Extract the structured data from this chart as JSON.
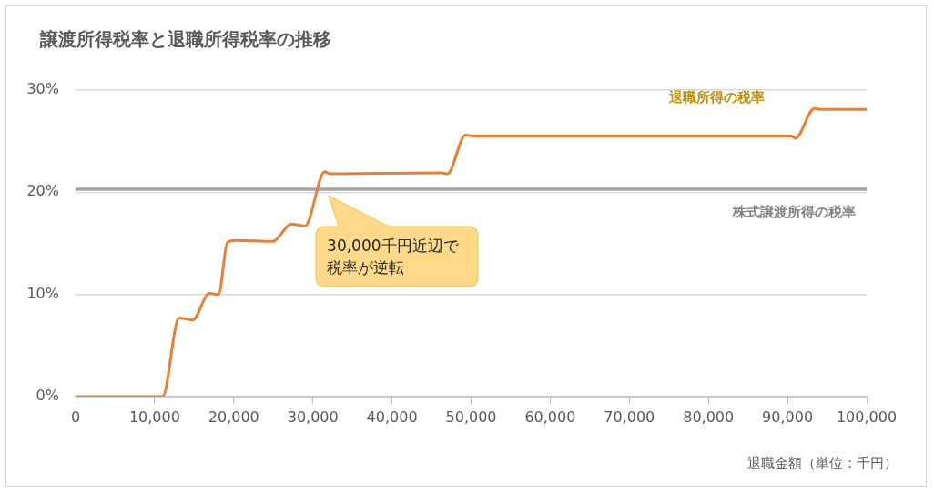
{
  "chart_data": {
    "type": "line",
    "title": "譲渡所得税率と退職所得税率の推移",
    "xlabel": "退職金額（単位：千円）",
    "series": [
      {
        "name": "退職所得の税率",
        "color": "#ed7d31",
        "x": [
          0,
          11000,
          13080,
          14800,
          16900,
          18070,
          19200,
          20370,
          24970,
          27270,
          29000,
          31500,
          32250,
          46300,
          47000,
          49300,
          50370,
          90440,
          91000,
          93400,
          94250,
          100000
        ],
        "values": [
          0,
          0,
          7.7,
          7.5,
          10.1,
          10,
          15.1,
          15.3,
          15.2,
          16.9,
          16.7,
          22,
          21.8,
          21.9,
          21.8,
          25.6,
          25.5,
          25.5,
          25.3,
          28.2,
          28.1,
          28.1
        ]
      },
      {
        "name": "株式譲渡所得の税率",
        "color": "#a5a5a5",
        "x": [
          0,
          100000
        ],
        "values": [
          20.3,
          20.3
        ]
      }
    ],
    "annotations": [
      {
        "text": "30,000千円近辺で税率が逆転",
        "x": 32000,
        "y": 20
      }
    ],
    "xlim": [
      0,
      100000
    ],
    "xticks": [
      {
        "value": 0,
        "label": "0"
      },
      {
        "value": 10000,
        "label": "10,000"
      },
      {
        "value": 20000,
        "label": "20,000"
      },
      {
        "value": 30000,
        "label": "30,000"
      },
      {
        "value": 40000,
        "label": "40,000"
      },
      {
        "value": 50000,
        "label": "50,000"
      },
      {
        "value": 60000,
        "label": "60,000"
      },
      {
        "value": 70000,
        "label": "70,000"
      },
      {
        "value": 80000,
        "label": "80,000"
      },
      {
        "value": 90000,
        "label": "90,000"
      },
      {
        "value": 100000,
        "label": "100,000"
      }
    ],
    "ylim": [
      0,
      30
    ],
    "yticks": [
      {
        "value": 0,
        "label": "0%"
      },
      {
        "value": 10,
        "label": "10%"
      },
      {
        "value": 20,
        "label": "20%"
      },
      {
        "value": 30,
        "label": "30%"
      }
    ],
    "grid": "y",
    "legend": false,
    "marker": "none",
    "line_style": "solid"
  }
}
